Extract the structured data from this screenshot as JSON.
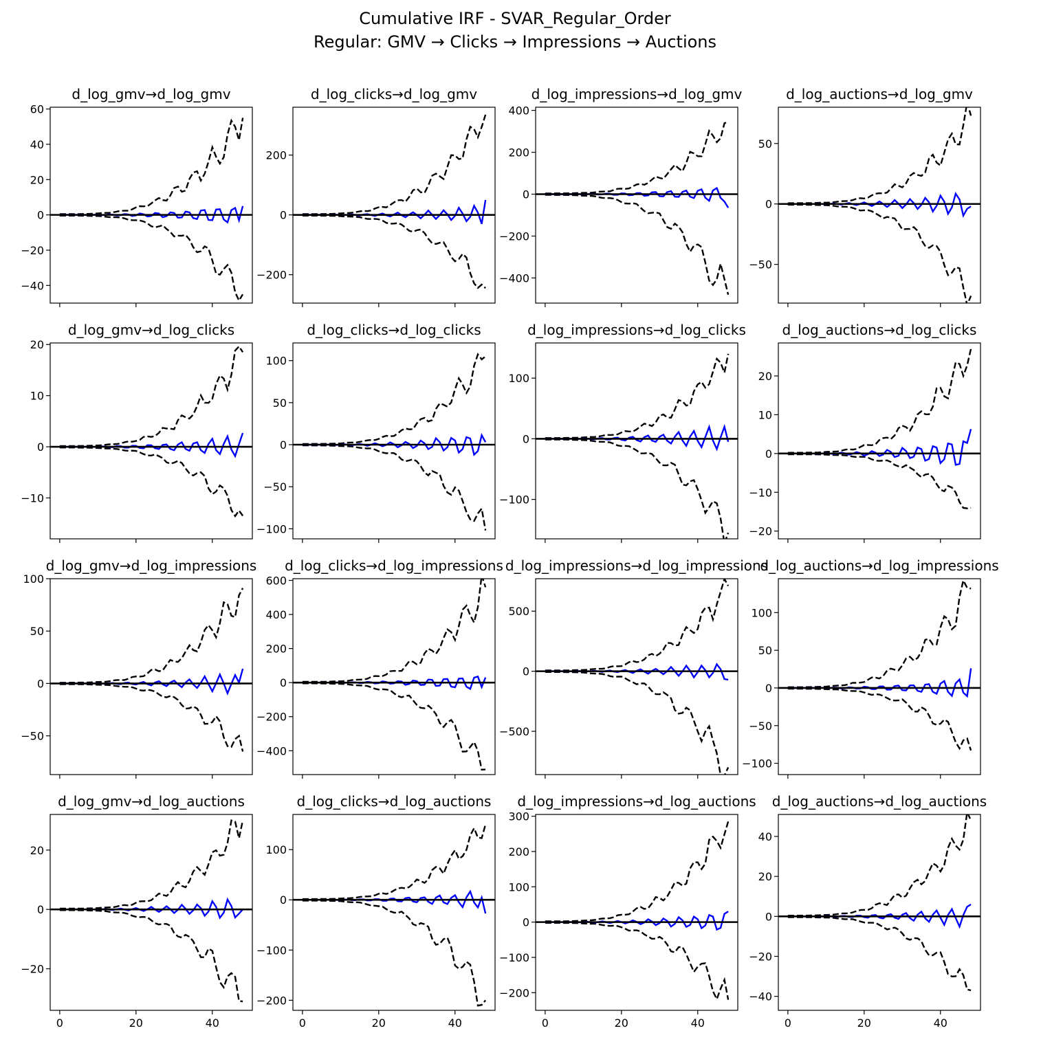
{
  "figure": {
    "title_line1": "Cumulative IRF - SVAR_Regular_Order",
    "title_line2": "Regular: GMV → Clicks → Impressions → Auctions"
  },
  "colors": {
    "irf": "#0000ff",
    "bands": "#000000",
    "zero": "#000000"
  },
  "chart_data": {
    "type": "line",
    "layout": "4x4 grid; rows = response variable, columns = impulse variable",
    "horizon": 48,
    "x_ticks": [
      0,
      20,
      40
    ],
    "xlim": [
      -2.5,
      50.5
    ],
    "series_style": {
      "irf": "solid blue line",
      "bands": "dashed black confidence bands",
      "zero": "solid black horizontal line at 0"
    },
    "panels": [
      {
        "title": "d_log_gmv→d_log_gmv",
        "ylim": [
          -50,
          61
        ],
        "yticks": [
          -40,
          -20,
          0,
          20,
          40,
          60
        ],
        "hi_end": 55,
        "lo_end": -45,
        "irf_amp": 7,
        "irf_end": 5
      },
      {
        "title": "d_log_clicks→d_log_gmv",
        "ylim": [
          -295,
          360
        ],
        "yticks": [
          -200,
          0,
          200
        ],
        "hi_end": 335,
        "lo_end": -245,
        "irf_amp": 40,
        "irf_end": 50
      },
      {
        "title": "d_log_impressions→d_log_gmv",
        "ylim": [
          -520,
          415
        ],
        "yticks": [
          -400,
          -200,
          0,
          200,
          400
        ],
        "hi_end": 345,
        "lo_end": -480,
        "irf_amp": 50,
        "irf_end": -65
      },
      {
        "title": "d_log_auctions→d_log_gmv",
        "ylim": [
          -82,
          80
        ],
        "yticks": [
          -50,
          0,
          50
        ],
        "hi_end": 73,
        "lo_end": -76,
        "irf_amp": 12,
        "irf_end": -2
      },
      {
        "title": "d_log_gmv→d_log_clicks",
        "ylim": [
          -18,
          20.3
        ],
        "yticks": [
          -10,
          0,
          10,
          20
        ],
        "hi_end": 18.5,
        "lo_end": -13.5,
        "irf_amp": 2.8,
        "irf_end": 2.7
      },
      {
        "title": "d_log_clicks→d_log_clicks",
        "ylim": [
          -112,
          121
        ],
        "yticks": [
          -100,
          -50,
          0,
          50,
          100
        ],
        "hi_end": 105,
        "lo_end": -102,
        "irf_amp": 18,
        "irf_end": 3
      },
      {
        "title": "d_log_impressions→d_log_clicks",
        "ylim": [
          -165,
          158
        ],
        "yticks": [
          -100,
          0,
          100
        ],
        "hi_end": 140,
        "lo_end": -155,
        "irf_amp": 26,
        "irf_end": -5
      },
      {
        "title": "d_log_auctions→d_log_clicks",
        "ylim": [
          -22,
          28.5
        ],
        "yticks": [
          -20,
          -10,
          0,
          10,
          20
        ],
        "hi_end": 27,
        "lo_end": -14,
        "irf_amp": 5,
        "irf_end": 6.3
      },
      {
        "title": "d_log_gmv→d_log_impressions",
        "ylim": [
          -87,
          100
        ],
        "yticks": [
          -50,
          0,
          50,
          100
        ],
        "hi_end": 91,
        "lo_end": -65,
        "irf_amp": 12,
        "irf_end": 14
      },
      {
        "title": "d_log_clicks→d_log_impressions",
        "ylim": [
          -540,
          610
        ],
        "yticks": [
          -400,
          -200,
          0,
          200,
          400,
          600
        ],
        "hi_end": 560,
        "lo_end": -510,
        "irf_amp": 60,
        "irf_end": 30
      },
      {
        "title": "d_log_impressions→d_log_impressions",
        "ylim": [
          -860,
          770
        ],
        "yticks": [
          -500,
          0,
          500
        ],
        "hi_end": 710,
        "lo_end": -800,
        "irf_amp": 90,
        "irf_end": -70
      },
      {
        "title": "d_log_auctions→d_log_impressions",
        "ylim": [
          -115,
          145
        ],
        "yticks": [
          -100,
          -50,
          0,
          50,
          100
        ],
        "hi_end": 132,
        "lo_end": -83,
        "irf_amp": 16,
        "irf_end": 26
      },
      {
        "title": "d_log_gmv→d_log_auctions",
        "ylim": [
          -34,
          32
        ],
        "yticks": [
          -20,
          0,
          20
        ],
        "hi_end": 30,
        "lo_end": -31,
        "irf_amp": 4.5,
        "irf_end": 0
      },
      {
        "title": "d_log_clicks→d_log_auctions",
        "ylim": [
          -220,
          170
        ],
        "yticks": [
          -200,
          -100,
          0,
          100
        ],
        "hi_end": 150,
        "lo_end": -200,
        "irf_amp": 22,
        "irf_end": -27
      },
      {
        "title": "d_log_impressions→d_log_auctions",
        "ylim": [
          -250,
          305
        ],
        "yticks": [
          -200,
          -100,
          0,
          100,
          200,
          300
        ],
        "hi_end": 285,
        "lo_end": -220,
        "irf_amp": 38,
        "irf_end": 30
      },
      {
        "title": "d_log_auctions→d_log_auctions",
        "ylim": [
          -47,
          51
        ],
        "yticks": [
          -40,
          -20,
          0,
          20,
          40
        ],
        "hi_end": 48,
        "lo_end": -37,
        "irf_amp": 6.5,
        "irf_end": 6
      }
    ]
  }
}
